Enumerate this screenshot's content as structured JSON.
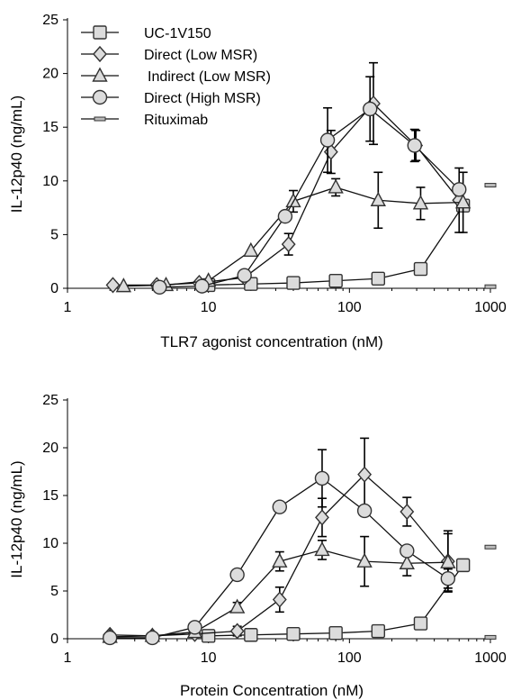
{
  "chart_data": [
    {
      "type": "line",
      "xlabel": "TLR7 agonist concentration (nM)",
      "ylabel": "IL-12p40 (ng/mL)",
      "x_scale": "log",
      "xlim": [
        1,
        1000
      ],
      "ylim": [
        0,
        25
      ],
      "x_ticks": [
        "1",
        "10",
        "100",
        "1000"
      ],
      "y_ticks": [
        "0",
        "5",
        "10",
        "15",
        "20",
        "25"
      ],
      "legend": "top-left",
      "series": [
        {
          "name": "UC-1V150",
          "marker": "square",
          "x": [
            10,
            20,
            40,
            80,
            160,
            320,
            640
          ],
          "y": [
            0.3,
            0.4,
            0.5,
            0.7,
            0.9,
            1.8,
            7.7
          ],
          "err": [
            0,
            0,
            0,
            0,
            0,
            0,
            0
          ]
        },
        {
          "name": "Direct (Low MSR)",
          "marker": "diamond",
          "x": [
            2.1,
            4.3,
            8.6,
            18,
            37,
            74,
            148,
            296,
            600
          ],
          "y": [
            0.3,
            0.3,
            0.5,
            1.0,
            4.1,
            12.7,
            17.2,
            13.3,
            8.2
          ],
          "err": [
            0,
            0,
            0,
            0,
            1.0,
            2.0,
            3.8,
            1.4,
            3.0
          ]
        },
        {
          "name": "Indirect (Low MSR)",
          "marker": "triangle",
          "x": [
            2.5,
            5,
            10,
            20,
            40,
            80,
            160,
            320,
            640
          ],
          "y": [
            0.2,
            0.3,
            0.7,
            3.5,
            8.1,
            9.4,
            8.2,
            7.9,
            8.0
          ],
          "err": [
            0,
            0,
            0,
            0,
            1.0,
            0.8,
            2.6,
            1.5,
            2.8
          ]
        },
        {
          "name": "Direct (High MSR)",
          "marker": "circle",
          "x": [
            4.5,
            9,
            18,
            35,
            70,
            140,
            290,
            600
          ],
          "y": [
            0.1,
            0.2,
            1.2,
            6.7,
            13.8,
            16.7,
            13.3,
            9.2
          ],
          "err": [
            0,
            0,
            0,
            0,
            3.0,
            3.0,
            1.5,
            0
          ]
        },
        {
          "name": "Rituximab",
          "marker": "dash",
          "x": [
            1000
          ],
          "y": [
            9.6
          ],
          "err": [
            0
          ]
        }
      ]
    },
    {
      "type": "line",
      "xlabel": "Protein Concentration (nM)",
      "ylabel": "IL-12p40 (ng/mL)",
      "x_scale": "log",
      "xlim": [
        1,
        1000
      ],
      "ylim": [
        0,
        25
      ],
      "x_ticks": [
        "1",
        "10",
        "100",
        "1000"
      ],
      "y_ticks": [
        "0",
        "5",
        "10",
        "15",
        "20",
        "25"
      ],
      "series": [
        {
          "name": "UC-1V150",
          "marker": "square",
          "x": [
            10,
            20,
            40,
            80,
            160,
            320,
            640
          ],
          "y": [
            0.3,
            0.4,
            0.5,
            0.6,
            0.8,
            1.6,
            7.7
          ],
          "err": [
            0,
            0,
            0,
            0,
            0,
            0,
            0
          ]
        },
        {
          "name": "Direct (Low MSR)",
          "marker": "diamond",
          "x": [
            2,
            4,
            8,
            16,
            32,
            64,
            128,
            256,
            500
          ],
          "y": [
            0.4,
            0.3,
            0.5,
            0.8,
            4.1,
            12.7,
            17.2,
            13.3,
            8.1
          ],
          "err": [
            0,
            0,
            0,
            0.5,
            1.3,
            2.0,
            3.8,
            1.5,
            3.2
          ]
        },
        {
          "name": "Indirect (Low MSR)",
          "marker": "triangle",
          "x": [
            2,
            4,
            8,
            16,
            32,
            64,
            128,
            256,
            500
          ],
          "y": [
            0.2,
            0.3,
            0.7,
            3.3,
            8.1,
            9.3,
            8.1,
            7.9,
            8.0
          ],
          "err": [
            0,
            0,
            0,
            0.5,
            1.0,
            1.0,
            2.6,
            1.3,
            3.0
          ]
        },
        {
          "name": "Direct (High MSR)",
          "marker": "circle",
          "x": [
            2,
            4,
            8,
            16,
            32,
            64,
            128,
            256,
            500
          ],
          "y": [
            0.1,
            0.1,
            1.2,
            6.7,
            13.8,
            16.8,
            13.4,
            9.2,
            6.3
          ],
          "err": [
            0,
            0,
            0,
            0,
            0,
            3.0,
            0,
            0,
            1.0
          ]
        },
        {
          "name": "Rituximab",
          "marker": "dash",
          "x": [
            1000
          ],
          "y": [
            9.6
          ],
          "err": [
            0
          ]
        }
      ]
    }
  ]
}
